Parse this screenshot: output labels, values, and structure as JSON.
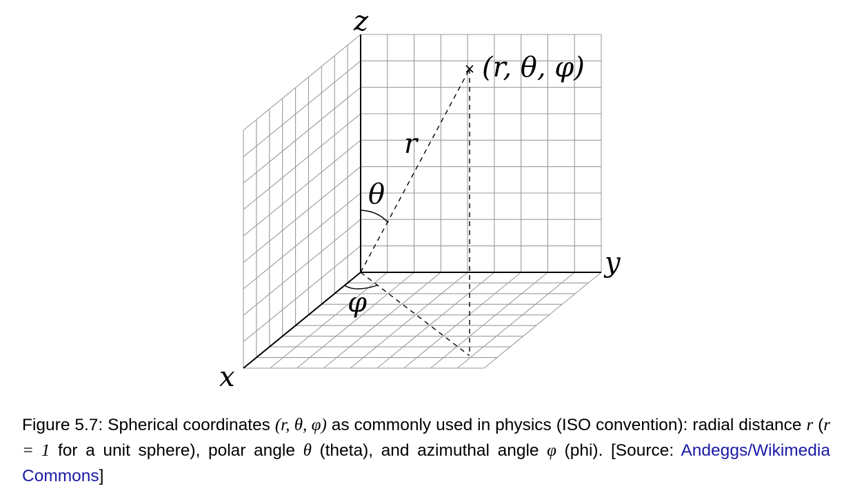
{
  "figure": {
    "axis_labels": {
      "x": "x",
      "y": "y",
      "z": "z"
    },
    "point_label": "(r, θ, φ)",
    "radius_label": "r",
    "theta_label": "θ",
    "phi_label": "φ",
    "grid_color": "#9a9a9a",
    "line_color": "#000000"
  },
  "caption": {
    "prefix": "Figure 5.7: Spherical coordinates ",
    "tuple": "(r, θ, φ)",
    "t1": " as commonly used in physics (ISO convention): radial distance ",
    "r": "r",
    "open_paren": " (",
    "r_eq_1": "r = 1",
    "t2": " for a unit sphere), polar angle ",
    "theta": "θ",
    "t3": " (theta), and azimuthal angle ",
    "phi": "φ",
    "t4": " (phi). [Source: ",
    "source_link": "Andeggs/Wikimedia Commons",
    "t5": "]",
    "link_color": "#1a1aa6"
  }
}
